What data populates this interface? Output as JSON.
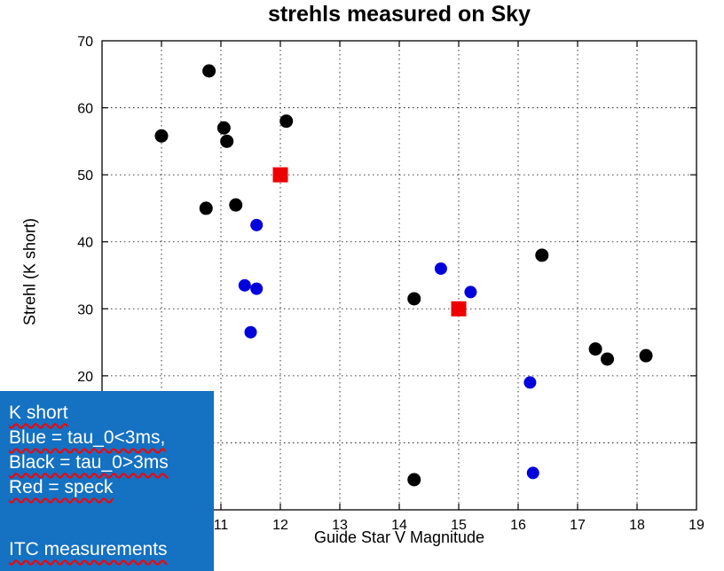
{
  "title": "strehls measured on Sky",
  "axes": {
    "xlabel": "Guide Star V Magnitude",
    "ylabel": "Strehl (K short)"
  },
  "legend": {
    "bg_color": "#1571c2",
    "underline_color": "#ff0000",
    "lines": [
      "K short",
      "Blue = tau_0<3ms,",
      "Black = tau_0>3ms",
      "Red = speck",
      "",
      "ITC measurements"
    ]
  },
  "chart_data": {
    "type": "scatter",
    "title": "strehls measured on Sky",
    "xlabel": "Guide Star V Magnitude",
    "ylabel": "Strehl (K short)",
    "xlim": [
      9,
      19
    ],
    "ylim": [
      0,
      70
    ],
    "x_tick_step": 1,
    "y_tick_step": 10,
    "grid": true,
    "x_ticks_labeled": [
      11,
      12,
      13,
      14,
      15,
      16,
      17,
      18,
      19
    ],
    "y_ticks_labeled": [
      70,
      60,
      50,
      40,
      30,
      20
    ],
    "series": [
      {
        "name": "Black = tau_0>3ms",
        "marker": "circle",
        "color": "#000000",
        "size": 7.5,
        "points": [
          [
            10.0,
            55.8
          ],
          [
            10.8,
            65.5
          ],
          [
            10.75,
            45.0
          ],
          [
            11.05,
            57.0
          ],
          [
            11.1,
            55.0
          ],
          [
            11.25,
            45.5
          ],
          [
            12.1,
            58.0
          ],
          [
            14.25,
            31.5
          ],
          [
            14.25,
            4.5
          ],
          [
            16.4,
            38.0
          ],
          [
            17.3,
            24.0
          ],
          [
            17.5,
            22.5
          ],
          [
            18.15,
            23.0
          ]
        ]
      },
      {
        "name": "Blue = tau_0<3ms",
        "marker": "circle",
        "color": "#0000dd",
        "size": 7,
        "points": [
          [
            11.4,
            33.5
          ],
          [
            11.6,
            33.0
          ],
          [
            11.6,
            42.5
          ],
          [
            11.5,
            26.5
          ],
          [
            14.7,
            36.0
          ],
          [
            15.2,
            32.5
          ],
          [
            16.2,
            19.0
          ],
          [
            16.25,
            5.5
          ]
        ]
      },
      {
        "name": "Red = speck",
        "marker": "square",
        "color": "#ee0000",
        "size": 8.5,
        "points": [
          [
            12.0,
            50.0
          ],
          [
            15.0,
            30.0
          ]
        ]
      }
    ]
  }
}
